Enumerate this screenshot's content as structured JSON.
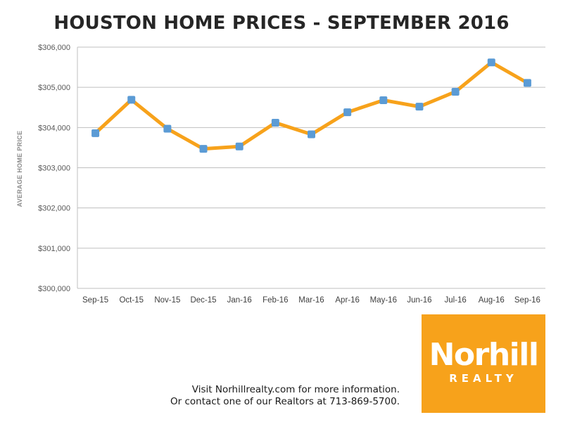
{
  "chart_data": {
    "type": "line",
    "title": "HOUSTON HOME PRICES - SEPTEMBER 2016",
    "xlabel": "",
    "ylabel": "AVERAGE HOME PRICE",
    "categories": [
      "Sep-15",
      "Oct-15",
      "Nov-15",
      "Dec-15",
      "Jan-16",
      "Feb-16",
      "Mar-16",
      "Apr-16",
      "May-16",
      "Jun-16",
      "Jul-16",
      "Aug-16",
      "Sep-16"
    ],
    "series": [
      {
        "values": [
          303860,
          304690,
          303970,
          303470,
          303530,
          304120,
          303830,
          304380,
          304680,
          304520,
          304890,
          305620,
          305110
        ]
      }
    ],
    "ylim": [
      300000,
      306000
    ],
    "yticks": [
      300000,
      301000,
      302000,
      303000,
      304000,
      305000,
      306000
    ],
    "ytick_labels": [
      "$300,000",
      "$301,000",
      "$302,000",
      "$303,000",
      "$304,000",
      "$305,000",
      "$306,000"
    ],
    "grid": true,
    "colors": {
      "line": "#f7a21b",
      "marker": "#5b9bd5",
      "grid": "#bfbfbf"
    }
  },
  "logo": {
    "name": "Norhill",
    "sub": "REALTY",
    "color": "#f7a21b"
  },
  "footer": {
    "line1": "Visit Norhillrealty.com for more information.",
    "line2": "Or contact one of our Realtors at 713-869-5700."
  }
}
